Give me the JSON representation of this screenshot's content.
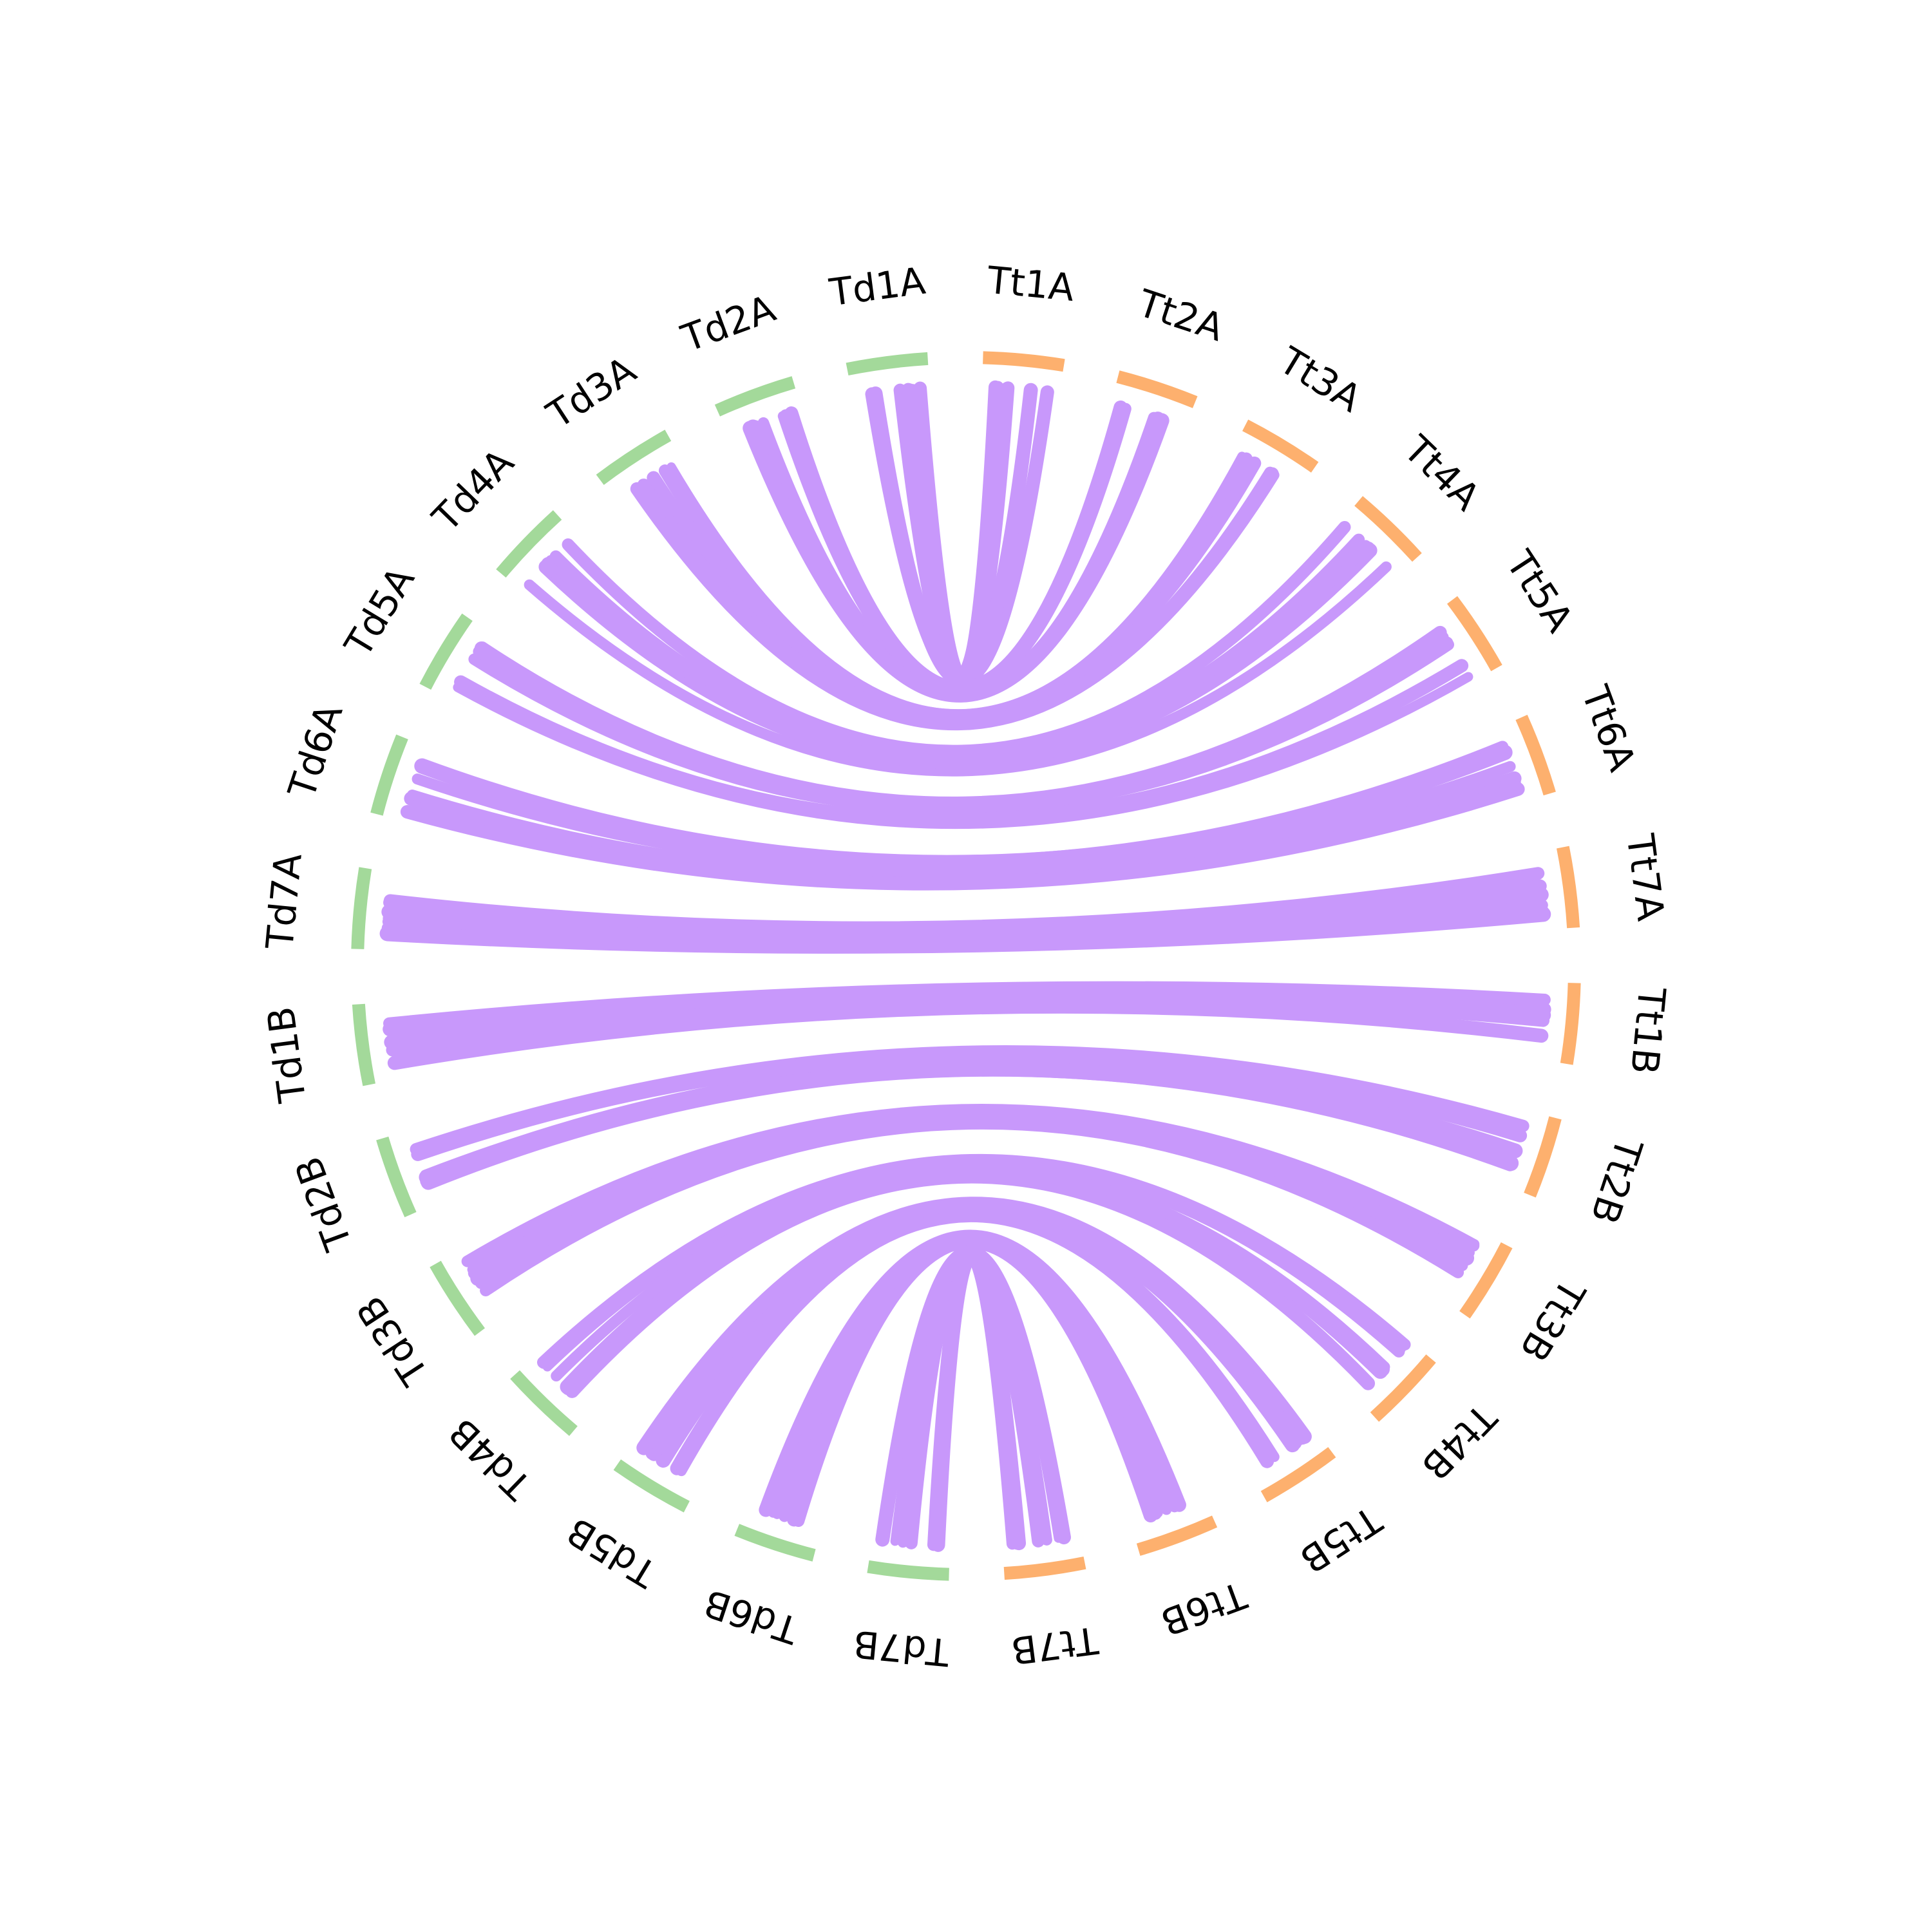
{
  "colors": {
    "td": "#a3d99a",
    "tt": "#fdb06e",
    "link": "#c898fb",
    "label": "#000000"
  },
  "segments": [
    {
      "id": "Tt1A",
      "label": "Tt1A",
      "group": "tt"
    },
    {
      "id": "Tt2A",
      "label": "Tt2A",
      "group": "tt"
    },
    {
      "id": "Tt3A",
      "label": "Tt3A",
      "group": "tt"
    },
    {
      "id": "Tt4A",
      "label": "Tt4A",
      "group": "tt"
    },
    {
      "id": "Tt5A",
      "label": "Tt5A",
      "group": "tt"
    },
    {
      "id": "Tt6A",
      "label": "Tt6A",
      "group": "tt"
    },
    {
      "id": "Tt7A",
      "label": "Tt7A",
      "group": "tt"
    },
    {
      "id": "Tt1B",
      "label": "Tt1B",
      "group": "tt"
    },
    {
      "id": "Tt2B",
      "label": "Tt2B",
      "group": "tt"
    },
    {
      "id": "Tt3B",
      "label": "Tt3B",
      "group": "tt"
    },
    {
      "id": "Tt4B",
      "label": "Tt4B",
      "group": "tt"
    },
    {
      "id": "Tt5B",
      "label": "Tt5B",
      "group": "tt"
    },
    {
      "id": "Tt6B",
      "label": "Tt6B",
      "group": "tt"
    },
    {
      "id": "Tt7B",
      "label": "Tt7B",
      "group": "tt"
    },
    {
      "id": "Td7B",
      "label": "Td7B",
      "group": "td"
    },
    {
      "id": "Td6B",
      "label": "Td6B",
      "group": "td"
    },
    {
      "id": "Td5B",
      "label": "Td5B",
      "group": "td"
    },
    {
      "id": "Td4B",
      "label": "Td4B",
      "group": "td"
    },
    {
      "id": "Td3B",
      "label": "Td3B",
      "group": "td"
    },
    {
      "id": "Td2B",
      "label": "Td2B",
      "group": "td"
    },
    {
      "id": "Td1B",
      "label": "Td1B",
      "group": "td"
    },
    {
      "id": "Td7A",
      "label": "Td7A",
      "group": "td"
    },
    {
      "id": "Td6A",
      "label": "Td6A",
      "group": "td"
    },
    {
      "id": "Td5A",
      "label": "Td5A",
      "group": "td"
    },
    {
      "id": "Td4A",
      "label": "Td4A",
      "group": "td"
    },
    {
      "id": "Td3A",
      "label": "Td3A",
      "group": "td"
    },
    {
      "id": "Td2A",
      "label": "Td2A",
      "group": "td"
    },
    {
      "id": "Td1A",
      "label": "Td1A",
      "group": "td"
    }
  ],
  "links": [
    {
      "source": "Td1A",
      "target": "Tt1A"
    },
    {
      "source": "Td2A",
      "target": "Tt2A"
    },
    {
      "source": "Td3A",
      "target": "Tt3A"
    },
    {
      "source": "Td4A",
      "target": "Tt4A"
    },
    {
      "source": "Td5A",
      "target": "Tt5A"
    },
    {
      "source": "Td6A",
      "target": "Tt6A"
    },
    {
      "source": "Td7A",
      "target": "Tt7A"
    },
    {
      "source": "Td1B",
      "target": "Tt1B"
    },
    {
      "source": "Td2B",
      "target": "Tt2B"
    },
    {
      "source": "Td3B",
      "target": "Tt3B"
    },
    {
      "source": "Td4B",
      "target": "Tt4B"
    },
    {
      "source": "Td5B",
      "target": "Tt5B"
    },
    {
      "source": "Td6B",
      "target": "Tt6B"
    },
    {
      "source": "Td7B",
      "target": "Tt7B"
    }
  ]
}
